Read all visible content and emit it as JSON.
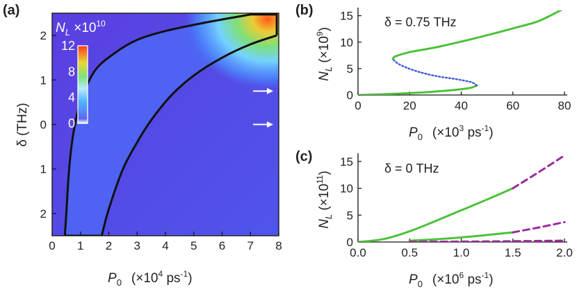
{
  "chart_data": [
    {
      "panel_label": "(a)",
      "type": "heatmap",
      "xlabel_main": "P",
      "xlabel_sub": "0",
      "xlabel_unit": "(×10",
      "xlabel_unit_exp": "4",
      "xlabel_unit_tail": " ps",
      "xlabel_unit_tail_exp": "-1",
      "xlabel_unit_close": ")",
      "ylabel": "δ (THz)",
      "xlim": [
        0,
        8
      ],
      "ylim": [
        -2.5,
        2.5
      ],
      "x_ticks": [
        0,
        1,
        2,
        3,
        4,
        5,
        6,
        7,
        8
      ],
      "x_tick_labels": [
        "0",
        "1",
        "2",
        "3",
        "4",
        "5",
        "6",
        "7",
        "8"
      ],
      "y_ticks": [
        2,
        1,
        0,
        -1,
        -2
      ],
      "y_tick_labels": [
        "2",
        "1",
        "0",
        "1",
        "2"
      ],
      "colorbar": {
        "label_main": "N",
        "label_sub": "L",
        "label_mult": " ×10",
        "label_exp": "10",
        "ticks": [
          0,
          4,
          8,
          12
        ],
        "tick_labels": [
          "0",
          "4",
          "8",
          "12"
        ],
        "range": [
          0,
          12
        ]
      },
      "boundary_outer": [
        [
          0.45,
          -2.5
        ],
        [
          0.5,
          -2.0
        ],
        [
          0.6,
          -1.0
        ],
        [
          0.75,
          -0.2
        ],
        [
          1.0,
          0.5
        ],
        [
          1.5,
          1.2
        ],
        [
          2.2,
          1.6
        ],
        [
          3.0,
          1.9
        ],
        [
          4.0,
          2.1
        ],
        [
          5.5,
          2.3
        ],
        [
          7.0,
          2.47
        ],
        [
          7.93,
          2.47
        ],
        [
          7.93,
          2.0
        ]
      ],
      "boundary_inner": [
        [
          1.75,
          -2.5
        ],
        [
          2.0,
          -1.9
        ],
        [
          2.5,
          -1.0
        ],
        [
          3.0,
          -0.4
        ],
        [
          3.5,
          0.1
        ],
        [
          4.2,
          0.65
        ],
        [
          5.0,
          1.1
        ],
        [
          6.0,
          1.5
        ],
        [
          7.0,
          1.8
        ],
        [
          7.93,
          2.0
        ]
      ],
      "boundary_bottom": [
        [
          0.45,
          -2.5
        ],
        [
          1.75,
          -2.5
        ]
      ],
      "arrows_delta": [
        0.75,
        0
      ]
    },
    {
      "panel_label": "(b)",
      "type": "line",
      "annotation": "δ = 0.75 THz",
      "xlabel_main": "P",
      "xlabel_sub": "0",
      "xlabel_unit": "(×10",
      "xlabel_unit_exp": "3",
      "xlabel_unit_tail": " ps",
      "xlabel_unit_tail_exp": "-1",
      "xlabel_unit_close": ")",
      "ylabel_main": "N",
      "ylabel_sub": "L",
      "ylabel_unit": " (×10",
      "ylabel_exp": "9",
      "ylabel_close": ")",
      "xlim": [
        0,
        80
      ],
      "ylim": [
        0,
        16
      ],
      "x_ticks": [
        0,
        20,
        40,
        60,
        80
      ],
      "y_ticks": [
        0,
        5,
        10,
        15
      ],
      "series": [
        {
          "style": "solid",
          "color": "#4cc23a",
          "points": [
            [
              0,
              0
            ],
            [
              10,
              0.15
            ],
            [
              20,
              0.35
            ],
            [
              30,
              0.65
            ],
            [
              40,
              1.1
            ],
            [
              44,
              1.4
            ],
            [
              46,
              1.8
            ]
          ]
        },
        {
          "style": "dotted",
          "color": "#3b57d9",
          "points": [
            [
              46,
              1.8
            ],
            [
              44,
              2.4
            ],
            [
              38,
              3.0
            ],
            [
              30,
              3.6
            ],
            [
              22,
              4.6
            ],
            [
              16,
              5.8
            ],
            [
              13.5,
              6.8
            ]
          ]
        },
        {
          "style": "solid",
          "color": "#4cc23a",
          "points": [
            [
              13.5,
              6.8
            ],
            [
              14.5,
              7.3
            ],
            [
              20,
              8.1
            ],
            [
              30,
              9.0
            ],
            [
              40,
              10.1
            ],
            [
              50,
              11.3
            ],
            [
              60,
              12.6
            ],
            [
              70,
              14.0
            ],
            [
              80,
              16.4
            ]
          ]
        }
      ]
    },
    {
      "panel_label": "(c)",
      "type": "line",
      "annotation": "δ = 0 THz",
      "xlabel_main": "P",
      "xlabel_sub": "0",
      "xlabel_unit": "(×10",
      "xlabel_unit_exp": "6",
      "xlabel_unit_tail": " ps",
      "xlabel_unit_tail_exp": "-1",
      "xlabel_unit_close": ")",
      "ylabel_main": "N",
      "ylabel_sub": "L",
      "ylabel_unit": " (×10",
      "ylabel_exp": "11",
      "ylabel_close": ")",
      "xlim": [
        0,
        2
      ],
      "ylim": [
        0,
        16
      ],
      "x_ticks": [
        0,
        0.5,
        1.0,
        1.5,
        2.0
      ],
      "x_tick_labels": [
        "0.0",
        "0.5",
        "1.0",
        "1.5",
        "2.0"
      ],
      "y_ticks": [
        0,
        5,
        10,
        15
      ],
      "series": [
        {
          "style": "solid",
          "color": "#4cc23a",
          "points": [
            [
              0,
              0
            ],
            [
              0.25,
              0.55
            ],
            [
              0.5,
              2.0
            ],
            [
              0.75,
              3.9
            ],
            [
              1.0,
              5.9
            ],
            [
              1.25,
              7.9
            ],
            [
              1.5,
              10.0
            ]
          ]
        },
        {
          "style": "dashed",
          "color": "#9b2a9b",
          "points": [
            [
              1.5,
              10.0
            ],
            [
              1.75,
              13.0
            ],
            [
              2.0,
              16.1
            ]
          ]
        },
        {
          "style": "solid",
          "color": "#4cc23a",
          "points": [
            [
              0.5,
              0.25
            ],
            [
              0.75,
              0.5
            ],
            [
              1.0,
              0.85
            ],
            [
              1.25,
              1.3
            ],
            [
              1.5,
              1.8
            ]
          ]
        },
        {
          "style": "dashed",
          "color": "#9b2a9b",
          "points": [
            [
              1.5,
              1.8
            ],
            [
              1.75,
              2.7
            ],
            [
              2.0,
              3.7
            ]
          ]
        },
        {
          "style": "dashed",
          "color": "#9b2a9b",
          "points": [
            [
              0.5,
              0.05
            ],
            [
              1.0,
              0.08
            ],
            [
              1.5,
              0.15
            ],
            [
              2.0,
              0.25
            ]
          ]
        }
      ]
    }
  ]
}
